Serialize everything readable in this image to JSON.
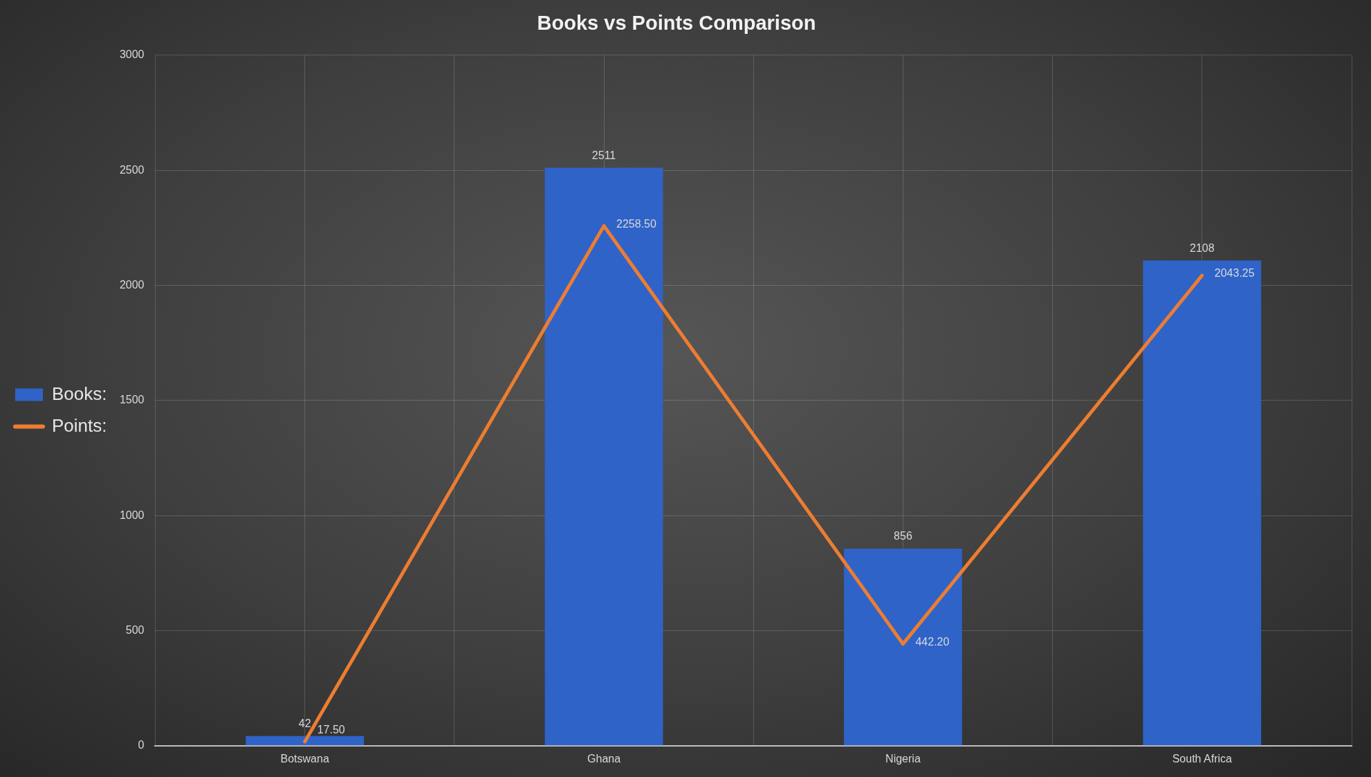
{
  "chart_data": {
    "type": "bar",
    "title": "Books vs Points Comparison",
    "categories": [
      "Botswana",
      "Ghana",
      "Nigeria",
      "South Africa"
    ],
    "series": [
      {
        "name": "Books:",
        "color": "#2f63c8",
        "values": [
          42,
          2511,
          856,
          2108
        ],
        "value_labels": [
          "42",
          "2511",
          "856",
          "2108"
        ]
      },
      {
        "name": "Points:",
        "type": "line",
        "color": "#ed7d31",
        "values": [
          17.5,
          2258.5,
          442.2,
          2043.25
        ],
        "value_labels": [
          "17.50",
          "2258.50",
          "442.20",
          "2043.25"
        ]
      }
    ],
    "ylim": [
      0,
      3000
    ],
    "yticks": [
      0,
      500,
      1000,
      1500,
      2000,
      2500,
      3000
    ],
    "grid": true,
    "legend": "left",
    "marker": "none",
    "line_style": "solid"
  }
}
